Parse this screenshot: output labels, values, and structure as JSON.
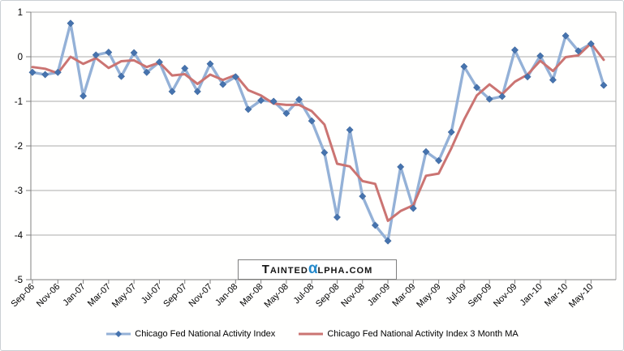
{
  "watermark": {
    "prefix": "Tainted",
    "alpha": "α",
    "suffix": "lpha.com",
    "alpha_color": "#2389CC",
    "text_color": "#151515"
  },
  "chart_data": {
    "type": "line",
    "title": "",
    "xlabel": "",
    "ylabel": "",
    "ylim": [
      -5,
      1
    ],
    "y_tick_step": 1,
    "y_tick_labels": [
      "1",
      "0",
      "-1",
      "-2",
      "-3",
      "-4",
      "-5"
    ],
    "grid": "horizontal",
    "legend_position": "bottom",
    "x_labels_shown_every": 2,
    "categories": [
      "Sep-06",
      "Oct-06",
      "Nov-06",
      "Dec-06",
      "Jan-07",
      "Feb-07",
      "Mar-07",
      "Apr-07",
      "May-07",
      "Jun-07",
      "Jul-07",
      "Aug-07",
      "Sep-07",
      "Oct-07",
      "Nov-07",
      "Dec-07",
      "Jan-08",
      "Feb-08",
      "Mar-08",
      "Apr-08",
      "May-08",
      "Jun-08",
      "Jul-08",
      "Aug-08",
      "Sep-08",
      "Oct-08",
      "Nov-08",
      "Dec-08",
      "Jan-09",
      "Feb-09",
      "Mar-09",
      "Apr-09",
      "May-09",
      "Jun-09",
      "Jul-09",
      "Aug-09",
      "Sep-09",
      "Oct-09",
      "Nov-09",
      "Dec-09",
      "Jan-10",
      "Feb-10",
      "Mar-10",
      "Apr-10",
      "May-10",
      "Jun-10"
    ],
    "series": [
      {
        "name": "Chicago Fed National Activity Index",
        "line_color": "#94B1D7",
        "marker": "diamond",
        "marker_color": "#4673AE",
        "values": [
          -0.35,
          -0.4,
          -0.35,
          0.75,
          -0.88,
          0.04,
          0.1,
          -0.44,
          0.09,
          -0.35,
          -0.12,
          -0.78,
          -0.26,
          -0.78,
          -0.16,
          -0.62,
          -0.45,
          -1.18,
          -0.98,
          -1.0,
          -1.27,
          -0.96,
          -1.44,
          -2.15,
          -3.6,
          -1.64,
          -3.13,
          -3.78,
          -4.13,
          -2.47,
          -3.4,
          -2.13,
          -2.33,
          -1.69,
          -0.22,
          -0.69,
          -0.95,
          -0.89,
          0.15,
          -0.45,
          0.02,
          -0.52,
          0.47,
          0.13,
          0.29,
          -0.64
        ]
      },
      {
        "name": "Chicago Fed National Activity Index 3 Month MA",
        "line_color": "#CB7472",
        "marker": "none",
        "marker_color": null,
        "values": [
          -0.23,
          -0.27,
          -0.37,
          0.0,
          -0.16,
          -0.03,
          -0.25,
          -0.1,
          -0.08,
          -0.23,
          -0.13,
          -0.42,
          -0.39,
          -0.61,
          -0.4,
          -0.52,
          -0.41,
          -0.75,
          -0.87,
          -1.05,
          -1.08,
          -1.08,
          -1.22,
          -1.52,
          -2.4,
          -2.46,
          -2.79,
          -2.85,
          -3.68,
          -3.46,
          -3.33,
          -2.67,
          -2.62,
          -2.05,
          -1.41,
          -0.87,
          -0.62,
          -0.84,
          -0.56,
          -0.4,
          -0.09,
          -0.32,
          -0.01,
          0.03,
          0.3,
          -0.07
        ]
      }
    ],
    "colors": {
      "gridline": "#ABABAB",
      "axis": "#808080",
      "tick_label": "#000000"
    }
  }
}
